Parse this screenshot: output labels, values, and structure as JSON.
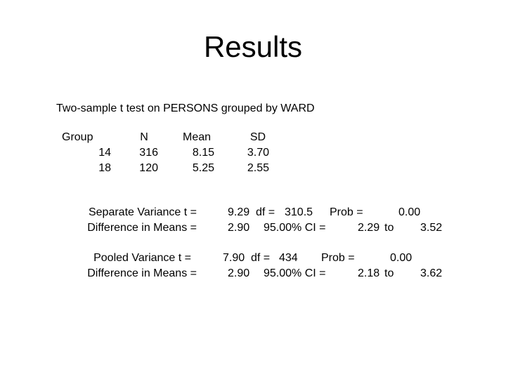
{
  "title": "Results",
  "heading": "Two-sample t test on PERSONS grouped by WARD",
  "table": {
    "columns": [
      "Group",
      "N",
      "Mean",
      "SD"
    ],
    "rows": [
      [
        "14",
        "316",
        "8.15",
        "3.70"
      ],
      [
        "18",
        "120",
        "5.25",
        "2.55"
      ]
    ]
  },
  "separate": {
    "label1": "Separate Variance t =",
    "label2": "Difference in Means =",
    "t": "9.29",
    "df_label": "df =",
    "df": "310.5",
    "prob_label": "Prob =",
    "prob": "0.00",
    "diff": "2.90",
    "ci_label": "95.00% CI =",
    "ci_low": "2.29",
    "to": "to",
    "ci_high": "3.52"
  },
  "pooled": {
    "label1": "Pooled Variance t =",
    "label2": "Difference in Means =",
    "t": "7.90",
    "df_label": "df =",
    "df": "434",
    "prob_label": "Prob =",
    "prob": "0.00",
    "diff": "2.90",
    "ci_label": "95.00% CI =",
    "ci_low": "2.18",
    "to": "to",
    "ci_high": "3.62"
  }
}
